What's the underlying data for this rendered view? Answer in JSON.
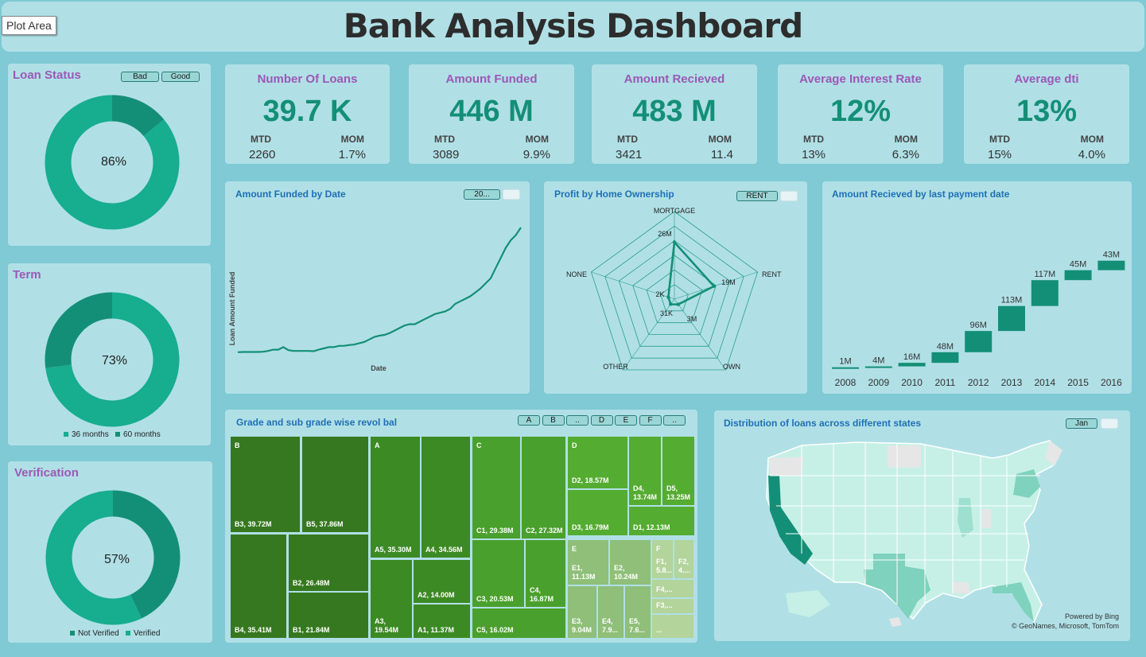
{
  "header": {
    "title": "Bank Analysis Dashboard",
    "tooltip": "Plot Area"
  },
  "colors": {
    "panel": "#b0e0e6",
    "background": "#7fcad4",
    "accent_dark": "#148f77",
    "accent_light": "#17ad8f",
    "title_purple": "#9b59b6",
    "chart_title_blue": "#1f6fb5"
  },
  "loan_status": {
    "title": "Loan Status",
    "slicers": [
      "Bad",
      "Good"
    ],
    "center": "86%"
  },
  "term": {
    "title": "Term",
    "center": "73%",
    "legend": [
      "36 months",
      "60 months"
    ]
  },
  "verification": {
    "title": "Verification",
    "center": "57%",
    "legend": [
      "Not Verified",
      "Verified"
    ]
  },
  "kpis": [
    {
      "title": "Number Of Loans",
      "value": "39.7 K",
      "mtd_label": "MTD",
      "mom_label": "MOM",
      "mtd": "2260",
      "mom": "1.7%"
    },
    {
      "title": "Amount Funded",
      "value": "446 M",
      "mtd_label": "MTD",
      "mom_label": "MOM",
      "mtd": "3089",
      "mom": "9.9%"
    },
    {
      "title": "Amount Recieved",
      "value": "483 M",
      "mtd_label": "MTD",
      "mom_label": "MOM",
      "mtd": "3421",
      "mom": "11.4"
    },
    {
      "title": "Average Interest Rate",
      "value": "12%",
      "mtd_label": "MTD",
      "mom_label": "MOM",
      "mtd": "13%",
      "mom": "6.3%"
    },
    {
      "title": "Average dti",
      "value": "13%",
      "mtd_label": "MTD",
      "mom_label": "MOM",
      "mtd": "15%",
      "mom": "4.0%"
    }
  ],
  "funded_by_date": {
    "title": "Amount Funded by Date",
    "slicer": "20...",
    "xlabel": "Date",
    "ylabel": "Loan Amount Funded"
  },
  "home_ownership": {
    "title": "Profit by Home Ownership",
    "slicer": "RENT",
    "labels": {
      "mortgage": "26M",
      "rent": "19M",
      "own": "3M",
      "other": "31K",
      "none": "2K"
    }
  },
  "received_by_date": {
    "title": "Amount Recieved by last payment date"
  },
  "treemap": {
    "title": "Grade and sub grade wise revol bal",
    "slicers": [
      "A",
      "B",
      "..",
      "D",
      "E",
      "F",
      ".."
    ],
    "groups": [
      "B",
      "A",
      "C",
      "D",
      "E",
      "F"
    ],
    "cells": [
      {
        "label": "B3, 39.72M"
      },
      {
        "label": "B5, 37.86M"
      },
      {
        "label": "B4, 35.41M"
      },
      {
        "label": "B2, 26.48M"
      },
      {
        "label": "B1, 21.84M"
      },
      {
        "label": "A5, 35.30M"
      },
      {
        "label": "A4, 34.56M"
      },
      {
        "label": "A3, 19.54M"
      },
      {
        "label": "A2, 14.00M"
      },
      {
        "label": "A1, 11.37M"
      },
      {
        "label": "C1, 29.38M"
      },
      {
        "label": "C2, 27.32M"
      },
      {
        "label": "C3, 20.53M"
      },
      {
        "label": "C4, 16.87M"
      },
      {
        "label": "C5, 16.02M"
      },
      {
        "label": "D2, 18.57M"
      },
      {
        "label": "D4, 13.74M"
      },
      {
        "label": "D5, 13.25M"
      },
      {
        "label": "D3, 16.79M"
      },
      {
        "label": "D1, 12.13M"
      },
      {
        "label": "E1, 11.13M"
      },
      {
        "label": "E2, 10.24M"
      },
      {
        "label": "E3, 9.04M"
      },
      {
        "label": "E4, 7.9..."
      },
      {
        "label": "E5, 7.6..."
      },
      {
        "label": "F1, 5.8..."
      },
      {
        "label": "F2, 4...."
      },
      {
        "label": "F4,..."
      },
      {
        "label": "F3,..."
      },
      {
        "label": "..."
      }
    ]
  },
  "map": {
    "title": "Distribution of loans across different states",
    "slicer": "Jan",
    "credit_line1": "Powered by Bing",
    "credit_line2": "© GeoNames, Microsoft, TomTom"
  },
  "chart_data": [
    {
      "type": "pie",
      "title": "Loan Status",
      "categories": [
        "Good",
        "Bad"
      ],
      "values": [
        86,
        14
      ]
    },
    {
      "type": "pie",
      "title": "Term",
      "categories": [
        "36 months",
        "60 months"
      ],
      "values": [
        73,
        27
      ]
    },
    {
      "type": "pie",
      "title": "Verification",
      "categories": [
        "Not Verified",
        "Verified"
      ],
      "values": [
        57,
        43
      ]
    },
    {
      "type": "line",
      "title": "Amount Funded by Date",
      "xlabel": "Date",
      "ylabel": "Loan Amount Funded",
      "values": [
        1,
        1.1,
        1.1,
        1.1,
        1.1,
        1.2,
        1.5,
        2,
        2,
        3,
        1.8,
        1.5,
        1.5,
        1.5,
        1.5,
        1.4,
        2,
        2.5,
        3,
        3,
        3.5,
        3.5,
        3.8,
        4,
        4.5,
        5,
        6,
        7,
        7.5,
        7.8,
        8.5,
        9.5,
        10.5,
        11.5,
        12,
        12,
        13,
        14,
        15,
        16,
        16.5,
        17,
        18,
        20,
        21,
        22,
        23,
        24.5,
        26,
        28,
        30,
        34,
        38,
        42,
        45,
        47,
        50
      ]
    },
    {
      "type": "radar",
      "title": "Profit by Home Ownership",
      "categories": [
        "MORTGAGE",
        "RENT",
        "OWN",
        "OTHER",
        "NONE"
      ],
      "values": [
        26000000,
        19000000,
        3000000,
        31000,
        2000
      ],
      "value_labels": [
        "26M",
        "19M",
        "3M",
        "31K",
        "2K"
      ]
    },
    {
      "type": "bar",
      "subtype": "waterfall",
      "title": "Amount Recieved by last payment date",
      "categories": [
        "2008",
        "2009",
        "2010",
        "2011",
        "2012",
        "2013",
        "2014",
        "2015",
        "2016"
      ],
      "values": [
        1,
        4,
        16,
        48,
        96,
        113,
        117,
        45,
        43
      ],
      "value_labels": [
        "1M",
        "4M",
        "16M",
        "48M",
        "96M",
        "113M",
        "117M",
        "45M",
        "43M"
      ]
    },
    {
      "type": "treemap",
      "title": "Grade and sub grade wise revol bal",
      "categories": [
        "B3",
        "B5",
        "B4",
        "B2",
        "B1",
        "A5",
        "A4",
        "A3",
        "A2",
        "A1",
        "C1",
        "C2",
        "C3",
        "C4",
        "C5",
        "D2",
        "D4",
        "D5",
        "D3",
        "D1",
        "E1",
        "E2"
      ],
      "values": [
        39.72,
        37.86,
        35.41,
        26.48,
        21.84,
        35.3,
        34.56,
        19.54,
        14.0,
        11.37,
        29.38,
        27.32,
        20.53,
        16.87,
        16.02,
        18.57,
        13.74,
        13.25,
        16.79,
        12.13,
        11.13,
        10.24
      ]
    }
  ]
}
